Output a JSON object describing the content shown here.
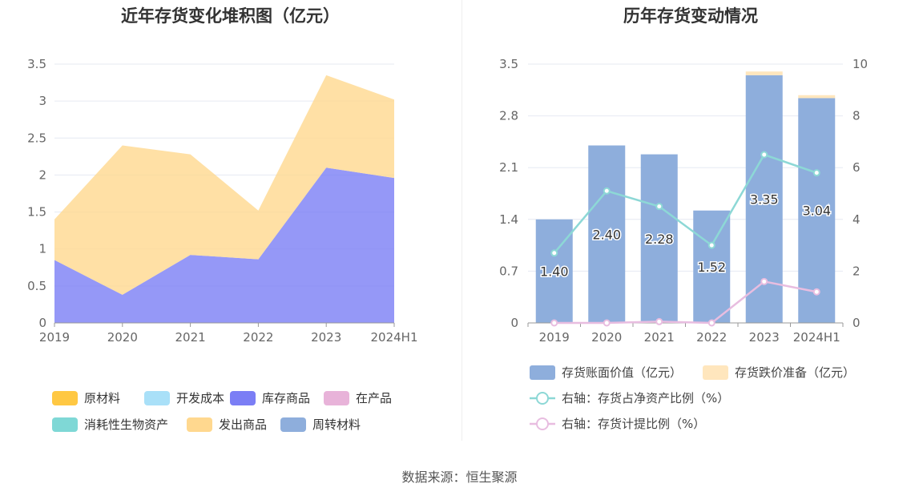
{
  "source": "数据来源：恒生聚源",
  "colors": {
    "raw": "#ffc843",
    "dev": "#a9e0f8",
    "inv": "#7b7ef5",
    "wip": "#e8b3d9",
    "bio": "#7fd8d6",
    "ship": "#ffd88f",
    "rot": "#8eaedc",
    "bar_value": "#8eaedc",
    "bar_impair": "#ffe6bd",
    "line_ratio": "#8dd8d6",
    "line_provision": "#e8bde0"
  },
  "chart_data": [
    {
      "type": "area",
      "title": "近年存货变化堆积图（亿元）",
      "categories": [
        "2019",
        "2020",
        "2021",
        "2022",
        "2023",
        "2024H1"
      ],
      "ylim": [
        0,
        3.5
      ],
      "yticks": [
        "0",
        "0.5",
        "1",
        "1.5",
        "2",
        "2.5",
        "3",
        "3.5"
      ],
      "series": [
        {
          "name": "原材料",
          "key": "raw",
          "values": [
            0,
            0,
            0,
            0,
            0,
            0
          ]
        },
        {
          "name": "开发成本",
          "key": "dev",
          "values": [
            0,
            0,
            0,
            0,
            0,
            0
          ]
        },
        {
          "name": "库存商品",
          "key": "inv",
          "values": [
            0.85,
            0.38,
            0.92,
            0.86,
            2.1,
            1.96
          ]
        },
        {
          "name": "在产品",
          "key": "wip",
          "values": [
            0,
            0,
            0,
            0,
            0,
            0
          ]
        },
        {
          "name": "消耗性生物资产",
          "key": "bio",
          "values": [
            0,
            0,
            0,
            0,
            0,
            0
          ]
        },
        {
          "name": "发出商品",
          "key": "ship",
          "values": [
            0.55,
            2.02,
            1.36,
            0.66,
            1.25,
            1.06
          ]
        },
        {
          "name": "周转材料",
          "key": "rot",
          "values": [
            0,
            0,
            0,
            0,
            0,
            0
          ]
        }
      ],
      "legend": [
        {
          "name": "原材料",
          "key": "raw"
        },
        {
          "name": "开发成本",
          "key": "dev"
        },
        {
          "name": "库存商品",
          "key": "inv"
        },
        {
          "name": "在产品",
          "key": "wip"
        },
        {
          "name": "消耗性生物资产",
          "key": "bio"
        },
        {
          "name": "发出商品",
          "key": "ship"
        },
        {
          "name": "周转材料",
          "key": "rot"
        }
      ]
    },
    {
      "type": "bar",
      "title": "历年存货变动情况",
      "categories": [
        "2019",
        "2020",
        "2021",
        "2022",
        "2023",
        "2024H1"
      ],
      "ylim": [
        0,
        3.5
      ],
      "yticks": [
        "0",
        "0.7",
        "1.4",
        "2.1",
        "2.8",
        "3.5"
      ],
      "y2lim": [
        0,
        10
      ],
      "y2ticks": [
        "0",
        "2",
        "4",
        "6",
        "8",
        "10"
      ],
      "series": [
        {
          "name": "存货账面价值（亿元）",
          "key": "bar_value",
          "values": [
            1.4,
            2.4,
            2.28,
            1.52,
            3.35,
            3.04
          ],
          "labels": [
            "1.40",
            "2.40",
            "2.28",
            "1.52",
            "3.35",
            "3.04"
          ]
        },
        {
          "name": "存货跌价准备（亿元）",
          "key": "bar_impair",
          "values": [
            0,
            0,
            0,
            0,
            0.05,
            0.04
          ]
        },
        {
          "name": "右轴：存货占净资产比例（%）",
          "key": "line_ratio",
          "axis": "right",
          "values": [
            2.7,
            5.1,
            4.5,
            3.0,
            6.5,
            5.8
          ]
        },
        {
          "name": "右轴：存货计提比例（%）",
          "key": "line_provision",
          "axis": "right",
          "values": [
            0,
            0,
            0.05,
            0,
            1.6,
            1.2
          ]
        }
      ]
    }
  ]
}
